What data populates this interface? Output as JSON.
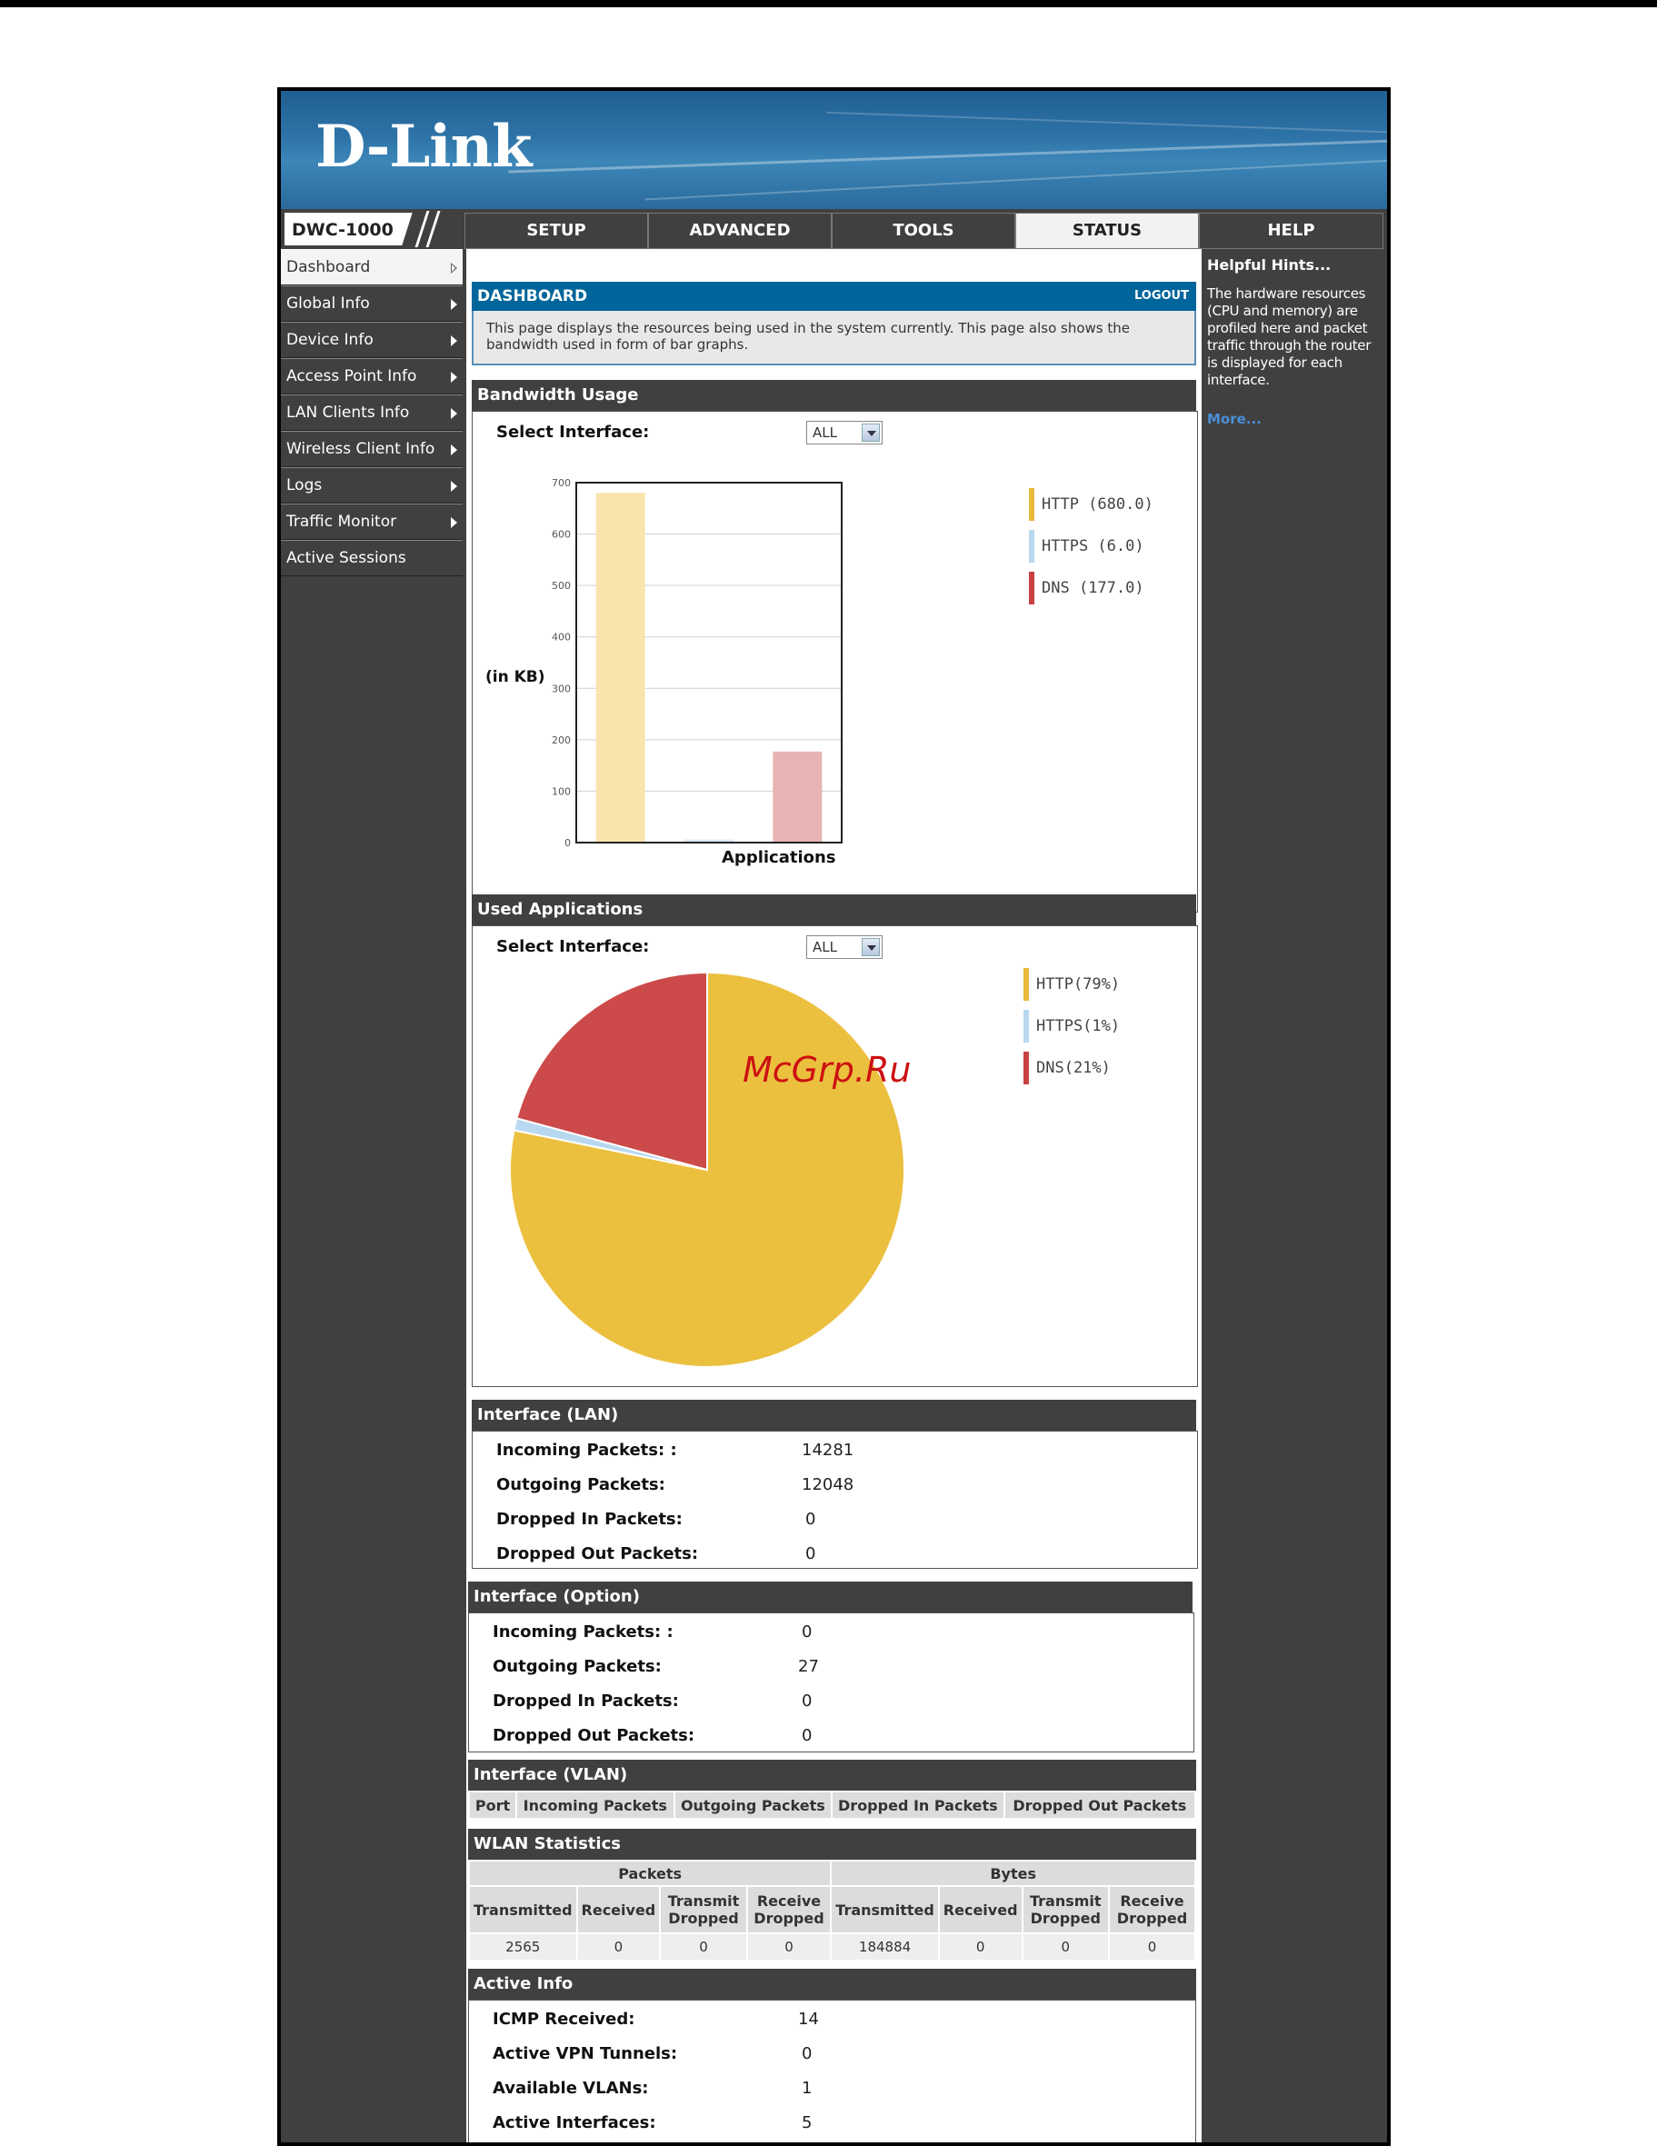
{
  "brand": {
    "logo": "D-Link",
    "model": "DWC-1000"
  },
  "nav": {
    "tabs": [
      {
        "label": "SETUP"
      },
      {
        "label": "ADVANCED"
      },
      {
        "label": "TOOLS"
      },
      {
        "label": "STATUS"
      },
      {
        "label": "HELP"
      }
    ]
  },
  "sidebar": {
    "items": [
      {
        "label": "Dashboard"
      },
      {
        "label": "Global Info"
      },
      {
        "label": "Device Info"
      },
      {
        "label": "Access Point Info"
      },
      {
        "label": "LAN Clients Info"
      },
      {
        "label": "Wireless Client Info"
      },
      {
        "label": "Logs"
      },
      {
        "label": "Traffic Monitor"
      },
      {
        "label": "Active Sessions"
      }
    ]
  },
  "dashboard": {
    "title": "DASHBOARD",
    "logout": "LOGOUT",
    "description": "This page displays the resources being used in the system currently. This page also shows the bandwidth used in form of bar graphs."
  },
  "bandwidth": {
    "title": "Bandwidth Usage",
    "select_label": "Select Interface:",
    "select_value": "ALL",
    "ylabel": "(in KB)",
    "xlabel": "Applications",
    "legend": [
      {
        "text": "HTTP (680.0)",
        "color": "#e8b93a"
      },
      {
        "text": "HTTPS (6.0)",
        "color": "#b8d8f0"
      },
      {
        "text": "DNS (177.0)",
        "color": "#c84040"
      }
    ]
  },
  "chart_data": [
    {
      "type": "bar",
      "categories": [
        "HTTP",
        "HTTPS",
        "DNS"
      ],
      "values": [
        680.0,
        6.0,
        177.0
      ],
      "colors": [
        "#f9e4ae",
        "#dde9f5",
        "#e8b3b3"
      ],
      "title": "",
      "xlabel": "Applications",
      "ylabel": "(in KB)",
      "ylim": [
        0,
        700
      ],
      "yticks": [
        "0",
        "100",
        "200",
        "300",
        "400",
        "500",
        "600",
        "700"
      ],
      "grid": true
    },
    {
      "type": "pie",
      "categories": [
        "HTTP",
        "HTTPS",
        "DNS"
      ],
      "values": [
        79,
        1,
        21
      ],
      "colors": [
        "#ecc03f",
        "#b8d8f0",
        "#cc4a4a"
      ]
    }
  ],
  "used_apps": {
    "title": "Used Applications",
    "select_label": "Select Interface:",
    "select_value": "ALL",
    "legend": [
      {
        "text": "HTTP(79%)",
        "color": "#e8b93a"
      },
      {
        "text": "HTTPS(1%)",
        "color": "#b8d8f0"
      },
      {
        "text": "DNS(21%)",
        "color": "#c84040"
      }
    ]
  },
  "iface_lan": {
    "title": "Interface (LAN)",
    "rows": [
      {
        "label": "Incoming Packets: :",
        "value": "14281"
      },
      {
        "label": "Outgoing Packets:",
        "value": "12048"
      },
      {
        "label": "Dropped In Packets:",
        "value": "0"
      },
      {
        "label": "Dropped Out Packets:",
        "value": "0"
      }
    ]
  },
  "iface_option": {
    "title": "Interface (Option)",
    "rows": [
      {
        "label": "Incoming Packets: :",
        "value": "0"
      },
      {
        "label": "Outgoing Packets:",
        "value": "27"
      },
      {
        "label": "Dropped In Packets:",
        "value": "0"
      },
      {
        "label": "Dropped Out Packets:",
        "value": "0"
      }
    ]
  },
  "iface_vlan": {
    "title": "Interface (VLAN)",
    "columns": [
      "Port",
      "Incoming Packets",
      "Outgoing Packets",
      "Dropped In Packets",
      "Dropped Out Packets"
    ]
  },
  "wlan": {
    "title": "WLAN Statistics",
    "group_packets": "Packets",
    "group_bytes": "Bytes",
    "columns": [
      "Transmitted",
      "Received",
      "Transmit Dropped",
      "Receive Dropped",
      "Transmitted",
      "Received",
      "Transmit Dropped",
      "Receive Dropped"
    ],
    "values": [
      "2565",
      "0",
      "0",
      "0",
      "184884",
      "0",
      "0",
      "0"
    ]
  },
  "active_info": {
    "title": "Active Info",
    "rows": [
      {
        "label": "ICMP Received:",
        "value": "14"
      },
      {
        "label": "Active VPN Tunnels:",
        "value": "0"
      },
      {
        "label": "Available VLANs:",
        "value": "1"
      },
      {
        "label": "Active Interfaces:",
        "value": "5"
      }
    ]
  },
  "help": {
    "title": "Helpful Hints...",
    "text": "The hardware resources (CPU and memory) are profiled here and packet traffic through the router is displayed for each interface.",
    "more": "More..."
  },
  "watermark": "McGrp.Ru"
}
